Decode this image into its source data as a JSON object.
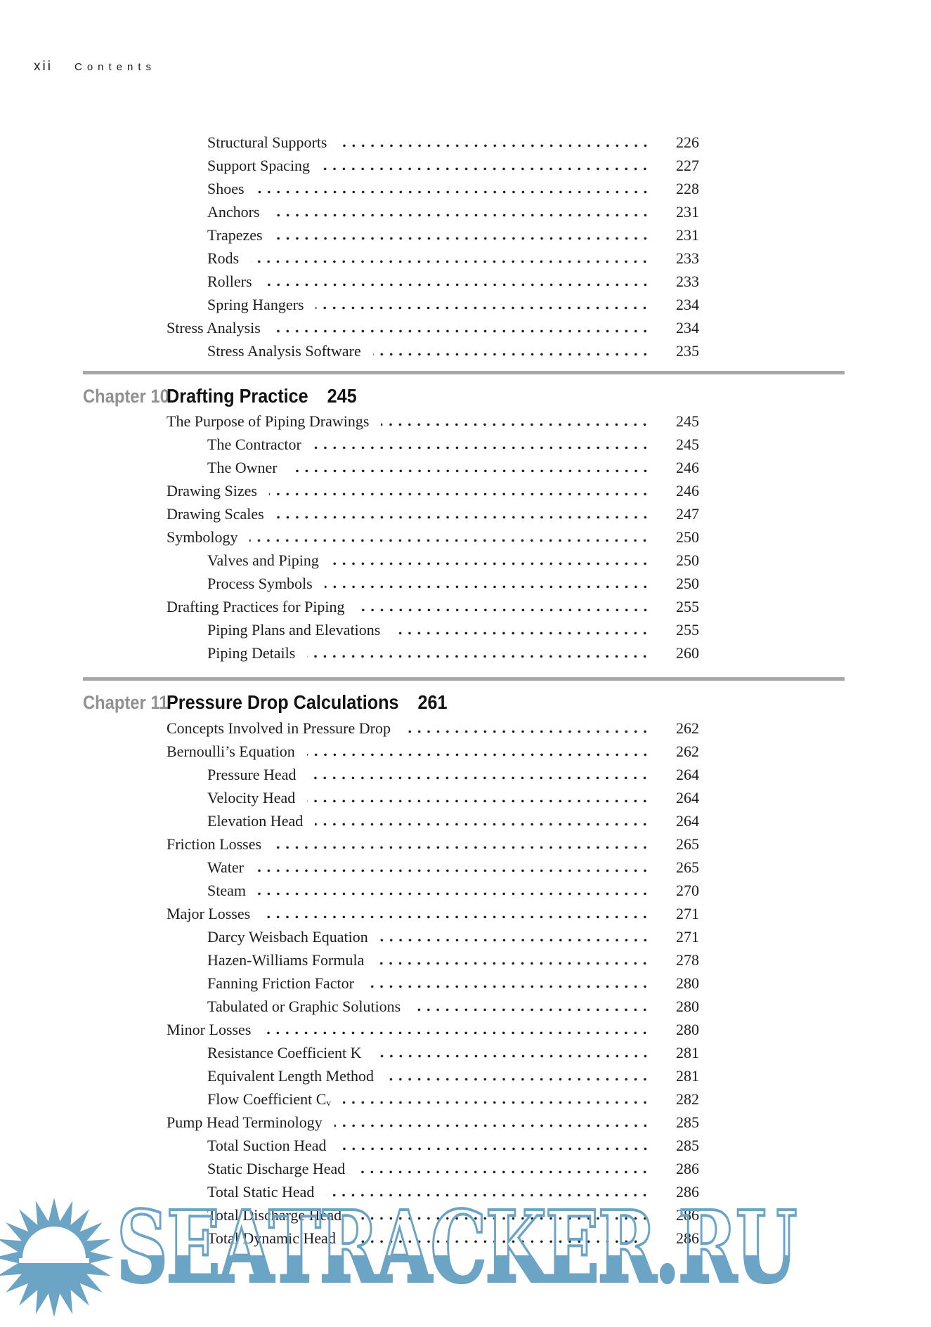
{
  "page": {
    "folio": "xii",
    "header": "Contents"
  },
  "chapters": {
    "ch10": {
      "label": "Chapter 10",
      "title": "Drafting Practice",
      "page": "245"
    },
    "ch11": {
      "label": "Chapter 11",
      "title": "Pressure Drop Calculations",
      "page": "261"
    }
  },
  "blocks": {
    "stress": {
      "items": [
        {
          "label": "Structural Supports",
          "page": "226",
          "level": 2
        },
        {
          "label": "Support Spacing",
          "page": "227",
          "level": 2
        },
        {
          "label": "Shoes",
          "page": "228",
          "level": 2
        },
        {
          "label": "Anchors",
          "page": "231",
          "level": 2
        },
        {
          "label": "Trapezes",
          "page": "231",
          "level": 2
        },
        {
          "label": "Rods",
          "page": "233",
          "level": 2
        },
        {
          "label": "Rollers",
          "page": "233",
          "level": 2
        },
        {
          "label": "Spring Hangers",
          "page": "234",
          "level": 2
        },
        {
          "label": "Stress Analysis",
          "page": "234",
          "level": 1
        },
        {
          "label": "Stress Analysis Software",
          "page": "235",
          "level": 2
        }
      ]
    },
    "drafting": {
      "items": [
        {
          "label": "The Purpose of Piping Drawings",
          "page": "245",
          "level": 1
        },
        {
          "label": "The Contractor",
          "page": "245",
          "level": 2
        },
        {
          "label": "The Owner",
          "page": "246",
          "level": 2
        },
        {
          "label": "Drawing Sizes",
          "page": "246",
          "level": 1
        },
        {
          "label": "Drawing Scales",
          "page": "247",
          "level": 1
        },
        {
          "label": "Symbology",
          "page": "250",
          "level": 1
        },
        {
          "label": "Valves and Piping",
          "page": "250",
          "level": 2
        },
        {
          "label": "Process Symbols",
          "page": "250",
          "level": 2
        },
        {
          "label": "Drafting Practices for Piping",
          "page": "255",
          "level": 1
        },
        {
          "label": "Piping Plans and Elevations",
          "page": "255",
          "level": 2
        },
        {
          "label": "Piping Details",
          "page": "260",
          "level": 2
        }
      ]
    },
    "pressure": {
      "items": [
        {
          "label": "Concepts Involved in Pressure Drop",
          "page": "262",
          "level": 1
        },
        {
          "label": "Bernoulli’s Equation",
          "page": "262",
          "level": 1
        },
        {
          "label": "Pressure Head",
          "page": "264",
          "level": 2
        },
        {
          "label": "Velocity Head",
          "page": "264",
          "level": 2
        },
        {
          "label": "Elevation Head",
          "page": "264",
          "level": 2
        },
        {
          "label": "Friction Losses",
          "page": "265",
          "level": 1
        },
        {
          "label": "Water",
          "page": "265",
          "level": 2
        },
        {
          "label": "Steam",
          "page": "270",
          "level": 2
        },
        {
          "label": "Major Losses",
          "page": "271",
          "level": 1
        },
        {
          "label": "Darcy Weisbach Equation",
          "page": "271",
          "level": 2
        },
        {
          "label": "Hazen-Williams Formula",
          "page": "278",
          "level": 2
        },
        {
          "label": "Fanning Friction Factor",
          "page": "280",
          "level": 2
        },
        {
          "label": "Tabulated or Graphic Solutions",
          "page": "280",
          "level": 2
        },
        {
          "label": "Minor Losses",
          "page": "280",
          "level": 1
        },
        {
          "label": "Resistance Coefficient K",
          "page": "281",
          "level": 2
        },
        {
          "label": "Equivalent Length Method",
          "page": "281",
          "level": 2
        },
        {
          "label": "Flow Coefficient Cᵥ",
          "page": "282",
          "level": 2
        },
        {
          "label": "Pump Head Terminology",
          "page": "285",
          "level": 1
        },
        {
          "label": "Total Suction Head",
          "page": "285",
          "level": 2
        },
        {
          "label": "Static Discharge Head",
          "page": "286",
          "level": 2
        },
        {
          "label": "Total Static Head",
          "page": "286",
          "level": 2
        },
        {
          "label": "Total Discharge Head",
          "page": "286",
          "level": 2
        },
        {
          "label": "Total Dynamic Head",
          "page": "286",
          "level": 2
        }
      ]
    }
  },
  "watermark": {
    "text": "SEATRACKER.RU",
    "color": "#6ca4c6"
  }
}
